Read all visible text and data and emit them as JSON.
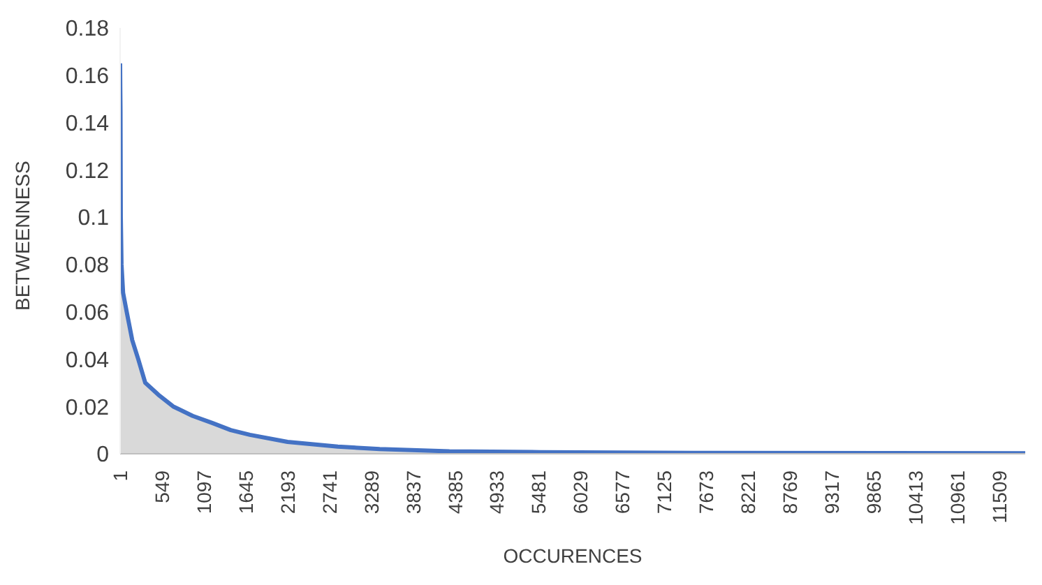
{
  "chart_data": {
    "type": "area",
    "xlabel": "OCCURENCES",
    "ylabel": "BETWEENNESS",
    "x": [
      1,
      3,
      6,
      10,
      19,
      40,
      87,
      160,
      238,
      330,
      500,
      695,
      950,
      1207,
      1450,
      1700,
      2193,
      2851,
      3399,
      4312,
      5500,
      7500,
      10000,
      11850
    ],
    "series": [
      {
        "color": "#4472c4",
        "values": [
          0.165,
          0.155,
          0.145,
          0.1,
          0.08,
          0.068,
          0.06,
          0.048,
          0.04,
          0.03,
          0.025,
          0.02,
          0.016,
          0.013,
          0.01,
          0.008,
          0.005,
          0.003,
          0.002,
          0.001,
          0.0007,
          0.0004,
          0.0003,
          0.0002
        ]
      }
    ],
    "xlim": [
      1,
      11850
    ],
    "xticks": [
      1,
      549,
      1097,
      1645,
      2193,
      2741,
      3289,
      3837,
      4385,
      4933,
      5481,
      6029,
      6577,
      7125,
      7673,
      8221,
      8769,
      9317,
      9865,
      10413,
      10961,
      11509
    ],
    "ylim": [
      0,
      0.18
    ],
    "yticks": [
      0,
      0.02,
      0.04,
      0.06,
      0.08,
      0.1,
      0.12,
      0.14,
      0.16,
      0.18
    ],
    "grid": false,
    "legend": false
  }
}
